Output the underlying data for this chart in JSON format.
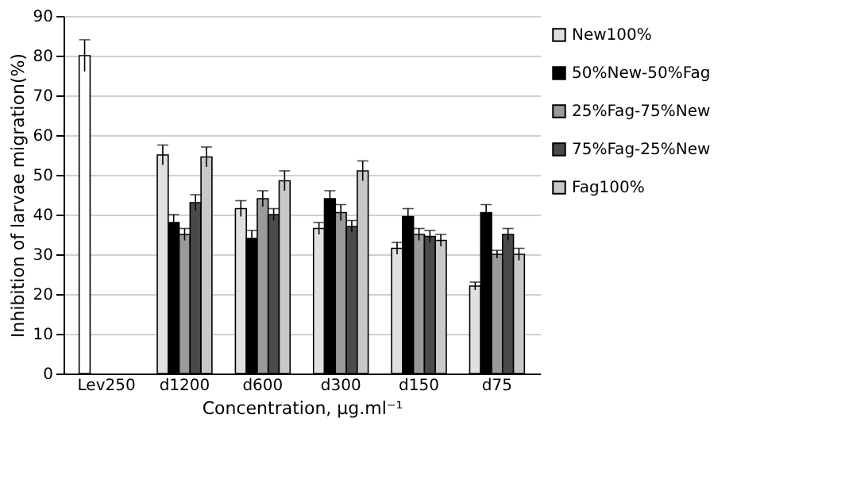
{
  "chart_data": {
    "type": "bar",
    "xlabel": "Concentration, µg.ml⁻¹",
    "ylabel": "Inhibition of larvae migration(%)",
    "categories": [
      "Lev250",
      "d1200",
      "d600",
      "d300",
      "d150",
      "d75"
    ],
    "ylim": [
      0,
      90
    ],
    "yticks": [
      0,
      10,
      20,
      30,
      40,
      50,
      60,
      70,
      80,
      90
    ],
    "grid": "y",
    "legend": "right",
    "series": [
      {
        "name": "New100%",
        "color": "#e0e0e0",
        "colors": [
          "#ffffff",
          "#e0e0e0",
          "#e0e0e0",
          "#e0e0e0",
          "#e0e0e0",
          "#e0e0e0"
        ],
        "values": [
          80,
          55,
          41.5,
          36.5,
          31.5,
          22
        ],
        "errors": [
          4,
          2.5,
          2,
          1.5,
          1.5,
          1
        ]
      },
      {
        "name": "50%New-50%Fag",
        "color": "#000000",
        "values": [
          null,
          38,
          34,
          44,
          39.5,
          40.5
        ],
        "errors": [
          null,
          2,
          2,
          2,
          2,
          2
        ]
      },
      {
        "name": "25%Fag-75%New",
        "color": "#9a9a9a",
        "values": [
          null,
          35,
          44,
          40.5,
          35,
          30
        ],
        "errors": [
          null,
          1.5,
          2,
          2,
          1.5,
          1
        ]
      },
      {
        "name": "75%Fag-25%New",
        "color": "#4a4a4a",
        "values": [
          null,
          43,
          40,
          37,
          34.5,
          35
        ],
        "errors": [
          null,
          2,
          1.5,
          1.5,
          1.5,
          1.5
        ]
      },
      {
        "name": "Fag100%",
        "color": "#c8c8c8",
        "values": [
          null,
          54.5,
          48.5,
          51,
          33.5,
          30
        ],
        "errors": [
          null,
          2.5,
          2.5,
          2.5,
          1.5,
          1.5
        ]
      }
    ]
  }
}
